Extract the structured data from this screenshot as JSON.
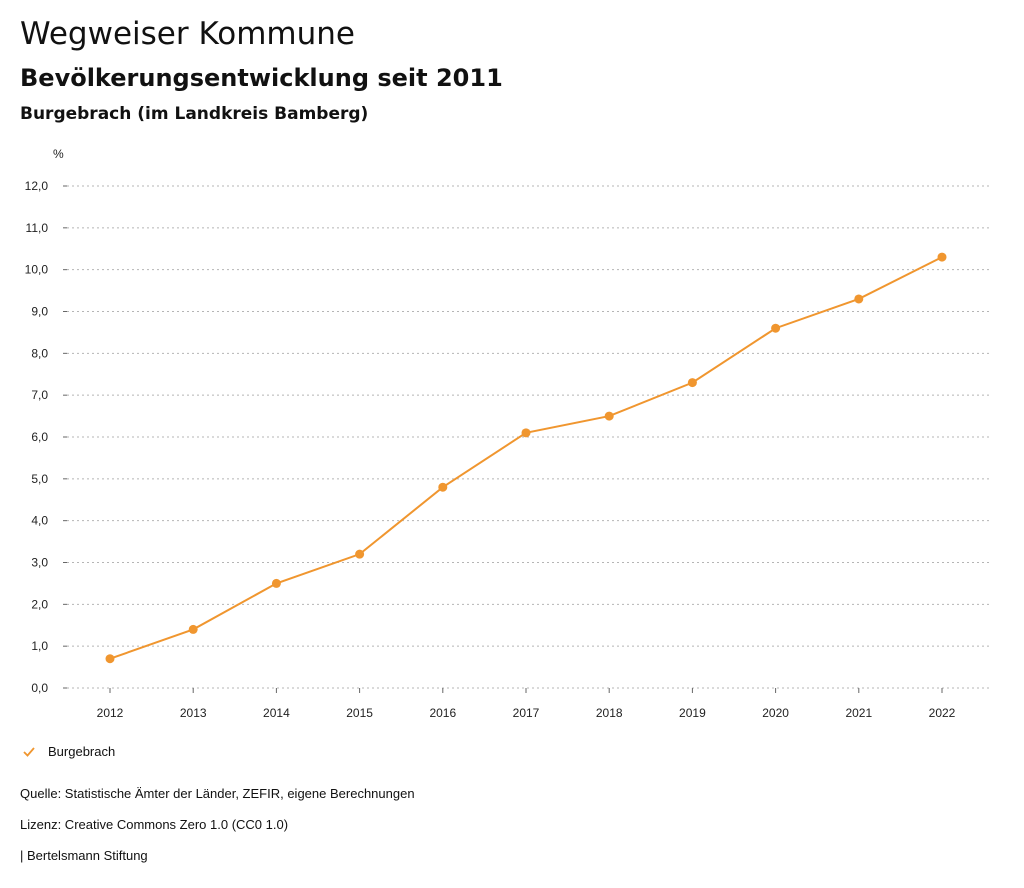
{
  "header": {
    "title": "Wegweiser Kommune",
    "subtitle": "Bevölkerungsentwicklung seit 2011",
    "place": "Burgebrach (im Landkreis Bamberg)"
  },
  "chart_data": {
    "type": "line",
    "unit_label": "%",
    "x": [
      "2012",
      "2013",
      "2014",
      "2015",
      "2016",
      "2017",
      "2018",
      "2019",
      "2020",
      "2021",
      "2022"
    ],
    "series": [
      {
        "name": "Burgebrach",
        "color": "#f0962f",
        "values": [
          0.7,
          1.4,
          2.5,
          3.2,
          4.8,
          6.1,
          6.5,
          7.3,
          8.6,
          9.3,
          10.3
        ]
      }
    ],
    "yticks": [
      "0,0",
      "1,0",
      "2,0",
      "3,0",
      "4,0",
      "5,0",
      "6,0",
      "7,0",
      "8,0",
      "9,0",
      "10,0",
      "11,0",
      "12,0"
    ],
    "ylim": [
      0,
      12
    ],
    "grid": true,
    "legend_position": "bottom-left"
  },
  "legend": {
    "label": "Burgebrach",
    "icon": "check-icon"
  },
  "footer": {
    "source": "Quelle: Statistische Ämter der Länder, ZEFIR, eigene Berechnungen",
    "license": "Lizenz: Creative Commons Zero 1.0 (CC0 1.0)",
    "brand": "| Bertelsmann Stiftung"
  }
}
